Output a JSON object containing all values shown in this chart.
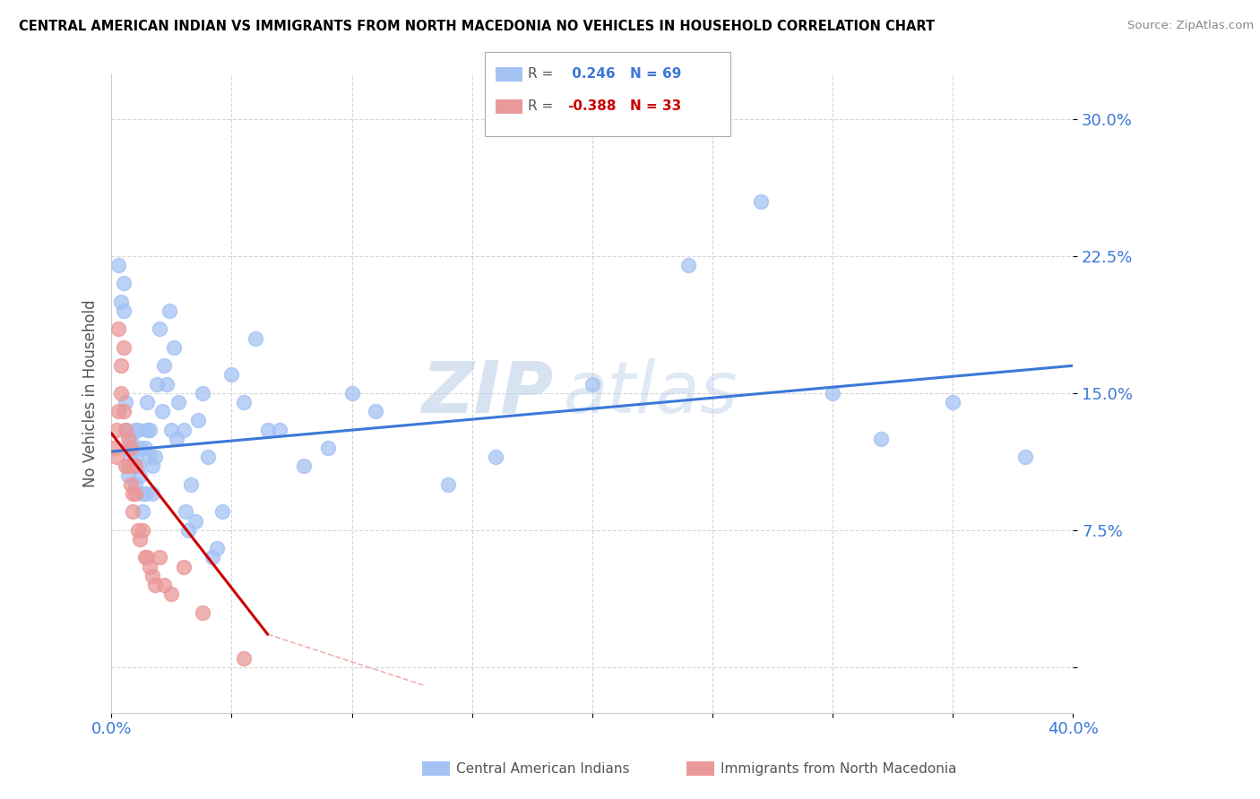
{
  "title": "CENTRAL AMERICAN INDIAN VS IMMIGRANTS FROM NORTH MACEDONIA NO VEHICLES IN HOUSEHOLD CORRELATION CHART",
  "source": "Source: ZipAtlas.com",
  "ylabel": "No Vehicles in Household",
  "ytick_labels": [
    "",
    "7.5%",
    "15.0%",
    "22.5%",
    "30.0%"
  ],
  "ytick_values": [
    0.0,
    0.075,
    0.15,
    0.225,
    0.3
  ],
  "xmin": 0.0,
  "xmax": 0.4,
  "ymin": -0.025,
  "ymax": 0.325,
  "legend1_label": "Central American Indians",
  "legend2_label": "Immigrants from North Macedonia",
  "R1": 0.246,
  "N1": 69,
  "R2": -0.388,
  "N2": 33,
  "color_blue": "#a4c2f4",
  "color_pink": "#ea9999",
  "color_line_blue": "#3c78d8",
  "color_line_pink": "#cc0000",
  "color_line_pink_dashed": "#e06666",
  "watermark_zip": "ZIP",
  "watermark_atlas": "atlas",
  "blue_x": [
    0.003,
    0.004,
    0.005,
    0.005,
    0.006,
    0.006,
    0.007,
    0.007,
    0.008,
    0.008,
    0.009,
    0.009,
    0.01,
    0.01,
    0.01,
    0.011,
    0.011,
    0.012,
    0.012,
    0.013,
    0.013,
    0.014,
    0.014,
    0.015,
    0.015,
    0.016,
    0.016,
    0.017,
    0.017,
    0.018,
    0.019,
    0.02,
    0.021,
    0.022,
    0.023,
    0.024,
    0.025,
    0.026,
    0.027,
    0.028,
    0.03,
    0.031,
    0.032,
    0.033,
    0.035,
    0.036,
    0.038,
    0.04,
    0.042,
    0.044,
    0.046,
    0.05,
    0.055,
    0.06,
    0.065,
    0.07,
    0.08,
    0.09,
    0.1,
    0.11,
    0.14,
    0.16,
    0.2,
    0.24,
    0.27,
    0.3,
    0.32,
    0.35,
    0.38
  ],
  "blue_y": [
    0.22,
    0.2,
    0.21,
    0.195,
    0.145,
    0.13,
    0.12,
    0.105,
    0.125,
    0.115,
    0.12,
    0.11,
    0.13,
    0.1,
    0.115,
    0.11,
    0.13,
    0.105,
    0.12,
    0.095,
    0.085,
    0.12,
    0.095,
    0.145,
    0.13,
    0.115,
    0.13,
    0.095,
    0.11,
    0.115,
    0.155,
    0.185,
    0.14,
    0.165,
    0.155,
    0.195,
    0.13,
    0.175,
    0.125,
    0.145,
    0.13,
    0.085,
    0.075,
    0.1,
    0.08,
    0.135,
    0.15,
    0.115,
    0.06,
    0.065,
    0.085,
    0.16,
    0.145,
    0.18,
    0.13,
    0.13,
    0.11,
    0.12,
    0.15,
    0.14,
    0.1,
    0.115,
    0.155,
    0.22,
    0.255,
    0.15,
    0.125,
    0.145,
    0.115
  ],
  "pink_x": [
    0.001,
    0.002,
    0.002,
    0.003,
    0.003,
    0.004,
    0.004,
    0.005,
    0.005,
    0.006,
    0.006,
    0.007,
    0.007,
    0.008,
    0.008,
    0.009,
    0.009,
    0.01,
    0.01,
    0.011,
    0.012,
    0.013,
    0.014,
    0.015,
    0.016,
    0.017,
    0.018,
    0.02,
    0.022,
    0.025,
    0.03,
    0.038,
    0.055
  ],
  "pink_y": [
    0.12,
    0.13,
    0.115,
    0.185,
    0.14,
    0.165,
    0.15,
    0.175,
    0.14,
    0.13,
    0.11,
    0.125,
    0.11,
    0.1,
    0.12,
    0.085,
    0.095,
    0.11,
    0.095,
    0.075,
    0.07,
    0.075,
    0.06,
    0.06,
    0.055,
    0.05,
    0.045,
    0.06,
    0.045,
    0.04,
    0.055,
    0.03,
    0.005
  ],
  "blue_line_x": [
    0.0,
    0.4
  ],
  "blue_line_y": [
    0.118,
    0.165
  ],
  "pink_line_x": [
    0.0,
    0.065
  ],
  "pink_line_y": [
    0.128,
    0.018
  ]
}
